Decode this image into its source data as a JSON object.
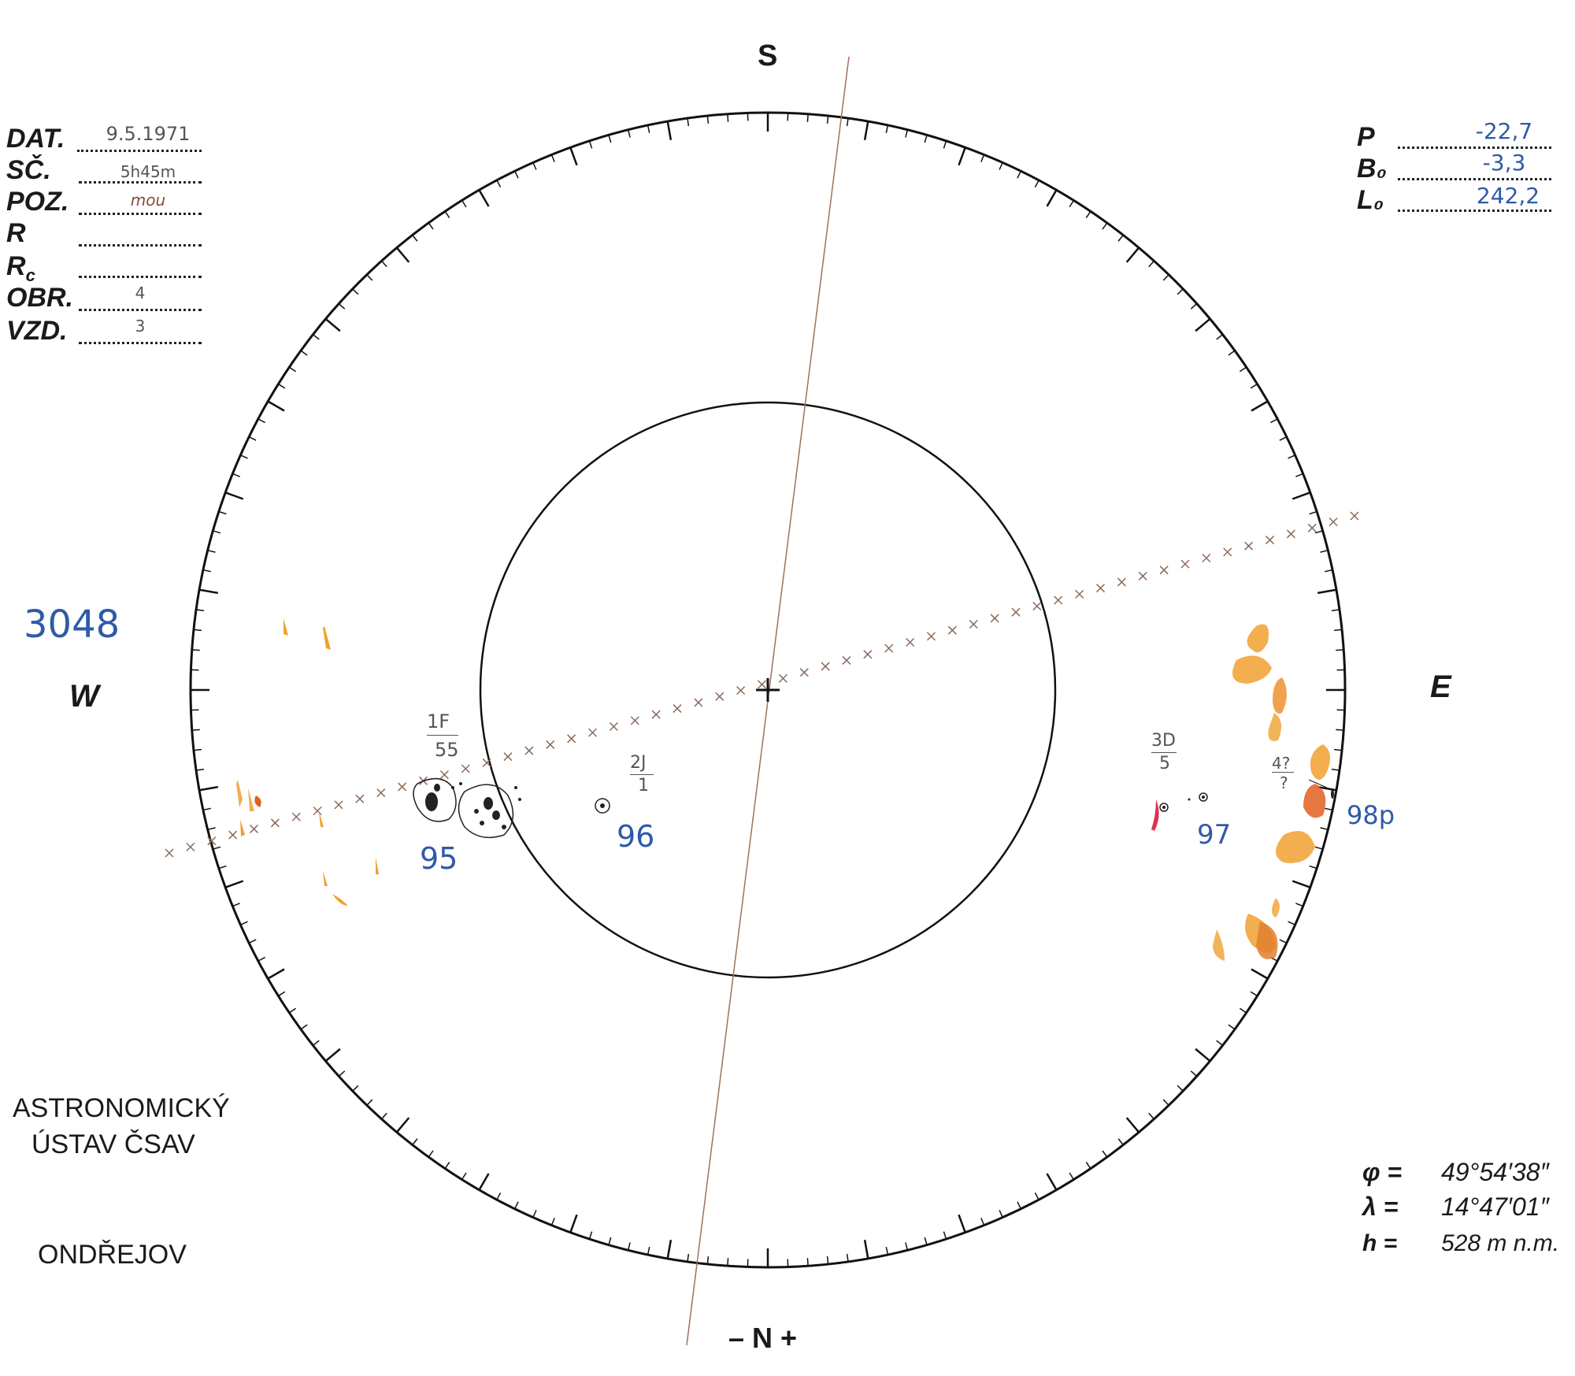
{
  "header_left": {
    "rows": [
      {
        "label": "DAT.",
        "value": "9.5.1971"
      },
      {
        "label": "SČ.",
        "value": "5h45m"
      },
      {
        "label": "POZ.",
        "value": "mou"
      },
      {
        "label": "R",
        "value": ""
      },
      {
        "label": "Rc",
        "value": ""
      },
      {
        "label": "OBR.",
        "value": "4"
      },
      {
        "label": "VZD.",
        "value": "3"
      }
    ]
  },
  "header_right": {
    "rows": [
      {
        "label": "P",
        "value": "-22,7"
      },
      {
        "label": "B₀",
        "value": "-3,3"
      },
      {
        "label": "L₀",
        "value": "242,2"
      }
    ]
  },
  "drawing_number": "3048",
  "directions": {
    "top": "S",
    "bottom": "– N +",
    "left": "W",
    "right": "E"
  },
  "institute": {
    "line1": "ASTRONOMICKÝ",
    "line2": "ÚSTAV ČSAV",
    "city": "ONDŘEJOV"
  },
  "coordinates": [
    {
      "symbol": "φ =",
      "value": "49°54′38″"
    },
    {
      "symbol": "λ =",
      "value": "14°47′01″"
    },
    {
      "symbol": "h =",
      "value": "528 m n.m."
    }
  ],
  "groups": [
    {
      "number": "95",
      "class_label": "1F",
      "count": "55"
    },
    {
      "number": "96",
      "class_label": "2J",
      "count": "1"
    },
    {
      "number": "97",
      "class_label": "3D",
      "count": "5"
    },
    {
      "number": "98p",
      "class_label": "4?",
      "count": "?"
    }
  ],
  "colors": {
    "ink": "#1a1a1a",
    "blue_ink": "#2f5aa8",
    "axis_line": "#a07060",
    "faculae": "#f0a030",
    "faculae_dark": "#e06020"
  }
}
